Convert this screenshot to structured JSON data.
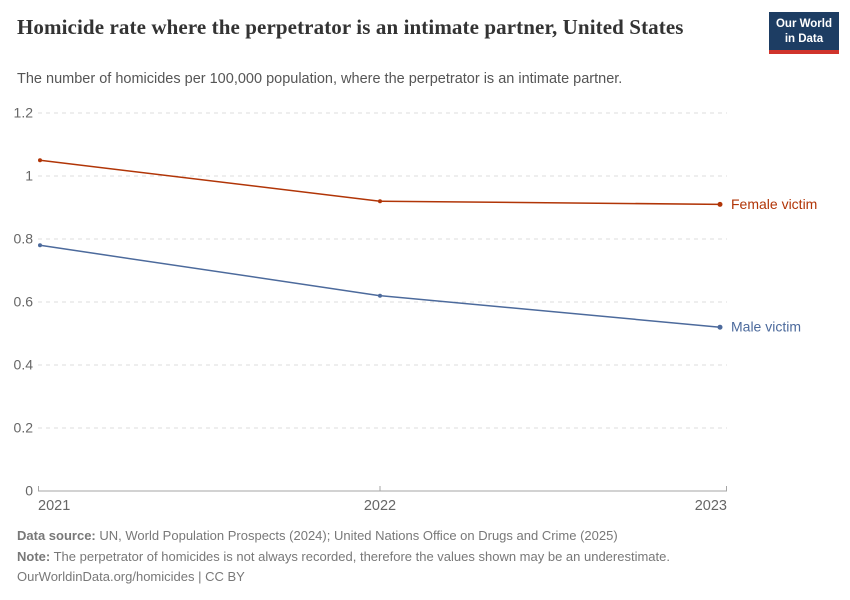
{
  "header": {
    "title": "Homicide rate where the perpetrator is an intimate partner, United States",
    "subtitle": "The number of homicides per 100,000 population, where the perpetrator is an intimate partner.",
    "logo": {
      "line1": "Our World",
      "line2": "in Data",
      "background_color": "#1d3d63",
      "stripe_color": "#d0342c"
    }
  },
  "chart_data": {
    "type": "line",
    "title": "Homicide rate where the perpetrator is an intimate partner, United States",
    "x": [
      2021,
      2022,
      2023
    ],
    "x_tick_labels": [
      "2021",
      "2022",
      "2023"
    ],
    "series": [
      {
        "name": "Female victim",
        "color": "#B13507",
        "values": [
          1.05,
          0.92,
          0.91
        ]
      },
      {
        "name": "Male victim",
        "color": "#4C6A9C",
        "values": [
          0.78,
          0.62,
          0.52
        ]
      }
    ],
    "xlabel": "",
    "ylabel": "",
    "ylim": [
      0,
      1.2
    ],
    "yticks": [
      0,
      0.2,
      0.4,
      0.6,
      0.8,
      1,
      1.2
    ],
    "grid": "horizontal-dashed",
    "legend_position": "line-end-labels",
    "gridline_color": "#dddddd",
    "axis_color": "#a5a5a5",
    "tick_label_color": "#666666"
  },
  "footer": {
    "datasource_label": "Data source:",
    "datasource_text": " UN, World Population Prospects (2024); United Nations Office on Drugs and Crime (2025)",
    "note_label": "Note:",
    "note_text": " The perpetrator of homicides is not always recorded, therefore the values shown may be an underestimate.",
    "license_link": "OurWorldinData.org/homicides",
    "license_suffix": " | CC BY"
  }
}
